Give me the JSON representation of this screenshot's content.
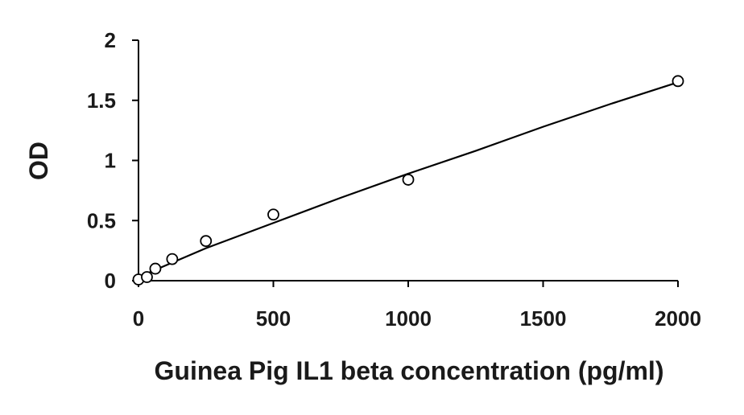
{
  "chart_data": {
    "type": "scatter",
    "title": "",
    "xlabel": "Guinea Pig IL1 beta concentration (pg/ml)",
    "ylabel": "OD",
    "xlim": [
      0,
      2000
    ],
    "ylim": [
      0,
      2
    ],
    "x_ticks": [
      0,
      500,
      1000,
      1500,
      2000
    ],
    "y_ticks": [
      0,
      0.5,
      1,
      1.5,
      2
    ],
    "x_tick_labels": [
      "0",
      "500",
      "1000",
      "1500",
      "2000"
    ],
    "y_tick_labels": [
      "0",
      "0.5",
      "1",
      "1.5",
      "2"
    ],
    "grid": false,
    "legend": "none",
    "series": [
      {
        "marker": "open-circle",
        "x": [
          0,
          31.25,
          62.5,
          125,
          250,
          500,
          1000,
          2000
        ],
        "y": [
          0.01,
          0.03,
          0.1,
          0.18,
          0.33,
          0.55,
          0.84,
          1.66
        ]
      }
    ],
    "trendline": {
      "type": "curve",
      "x": [
        0,
        250,
        500,
        750,
        1000,
        1250,
        1500,
        1750,
        2000
      ],
      "y": [
        0.03,
        0.27,
        0.48,
        0.69,
        0.89,
        1.08,
        1.28,
        1.47,
        1.65
      ]
    },
    "colors": {
      "axis": "#000000",
      "marker": "#000000",
      "marker_fill": "#ffffff",
      "line": "#000000"
    }
  }
}
